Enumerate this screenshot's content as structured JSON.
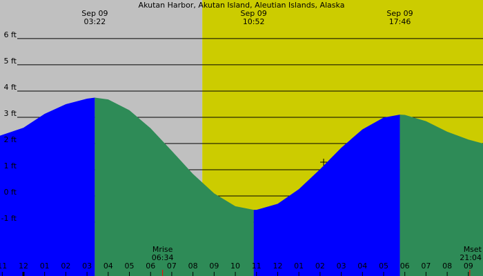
{
  "chart_data": {
    "type": "area",
    "title": "Akutan Harbor, Akutan Island, Aleutian Islands, Alaska",
    "xlim": [
      -1.107,
      21.69
    ],
    "ylim": [
      -3.05,
      7.47
    ],
    "yticks": [
      {
        "value": -1,
        "label": "-1 ft"
      },
      {
        "value": 0,
        "label": "0 ft"
      },
      {
        "value": 1,
        "label": "1 ft"
      },
      {
        "value": 2,
        "label": "2 ft"
      },
      {
        "value": 3,
        "label": "3 ft"
      },
      {
        "value": 4,
        "label": "4 ft"
      },
      {
        "value": 5,
        "label": "5 ft"
      },
      {
        "value": 6,
        "label": "6 ft"
      }
    ],
    "xticks": [
      {
        "value": -1,
        "label": "11"
      },
      {
        "value": 0,
        "label": "12"
      },
      {
        "value": 1,
        "label": "01"
      },
      {
        "value": 2,
        "label": "02"
      },
      {
        "value": 3,
        "label": "03"
      },
      {
        "value": 4,
        "label": "04"
      },
      {
        "value": 5,
        "label": "05"
      },
      {
        "value": 6,
        "label": "06"
      },
      {
        "value": 7,
        "label": "07"
      },
      {
        "value": 8,
        "label": "08"
      },
      {
        "value": 9,
        "label": "09"
      },
      {
        "value": 10,
        "label": "10"
      },
      {
        "value": 11,
        "label": "11"
      },
      {
        "value": 12,
        "label": "12"
      },
      {
        "value": 13,
        "label": "01"
      },
      {
        "value": 14,
        "label": "02"
      },
      {
        "value": 15,
        "label": "03"
      },
      {
        "value": 16,
        "label": "04"
      },
      {
        "value": 17,
        "label": "05"
      },
      {
        "value": 18,
        "label": "06"
      },
      {
        "value": 19,
        "label": "07"
      },
      {
        "value": 20,
        "label": "08"
      },
      {
        "value": 21,
        "label": "09"
      }
    ],
    "grid": true,
    "night_color": "#c0c0c0",
    "day_color": "#cccc00",
    "daylight_start": 8.44,
    "series": [
      {
        "color": "#0000ff",
        "x": [
          -1.107,
          0,
          1,
          2,
          3,
          3.367
        ],
        "values": [
          2.3,
          2.6,
          3.13,
          3.5,
          3.71,
          3.75
        ]
      },
      {
        "color": "#2e8b57",
        "x": [
          3.367,
          4,
          5,
          6,
          7,
          8,
          9,
          10,
          10.867
        ],
        "values": [
          3.75,
          3.68,
          3.27,
          2.58,
          1.72,
          0.84,
          0.1,
          -0.39,
          -0.53
        ]
      },
      {
        "color": "#0000ff",
        "x": [
          10.867,
          11,
          12,
          13,
          14,
          15,
          16,
          17,
          17.767
        ],
        "values": [
          -0.53,
          -0.53,
          -0.3,
          0.26,
          1.02,
          1.84,
          2.54,
          2.99,
          3.1
        ]
      },
      {
        "color": "#2e8b57",
        "x": [
          17.767,
          18,
          19,
          20,
          21,
          21.69
        ],
        "values": [
          3.1,
          3.09,
          2.85,
          2.45,
          2.15,
          2.0
        ]
      }
    ],
    "extremes": [
      {
        "date": "Sep 09",
        "time": "03:22",
        "x": 3.367
      },
      {
        "date": "Sep 09",
        "time": "10:52",
        "x": 10.867
      },
      {
        "date": "Sep 09",
        "time": "17:46",
        "x": 17.767
      }
    ],
    "moon": [
      {
        "label": "Mrise",
        "time": "06:34",
        "x": 6.567
      },
      {
        "label": "Mset",
        "time": "21:04",
        "x": 21.067
      }
    ]
  }
}
